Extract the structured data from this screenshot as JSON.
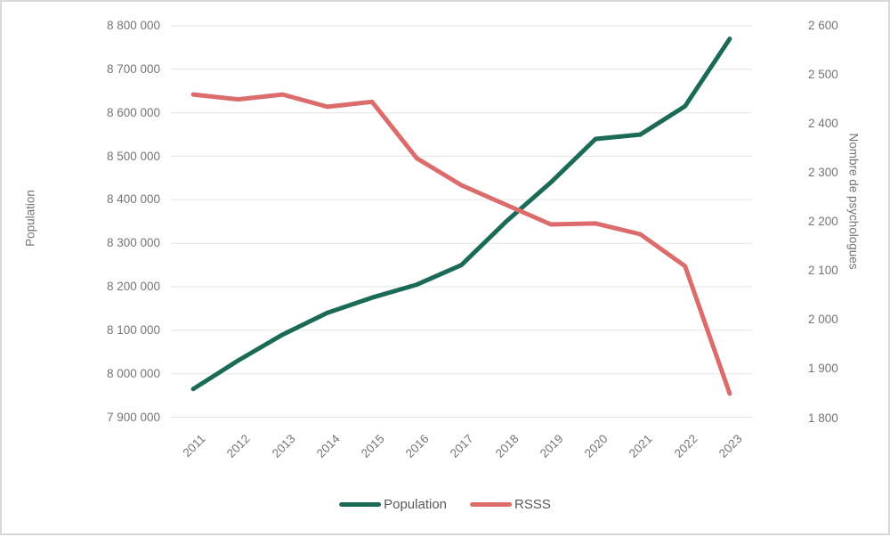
{
  "chart_data": {
    "type": "line",
    "categories": [
      "2011",
      "2012",
      "2013",
      "2014",
      "2015",
      "2016",
      "2017",
      "2018",
      "2019",
      "2020",
      "2021",
      "2022",
      "2023"
    ],
    "series": [
      {
        "name": "Population",
        "axis": "left",
        "color": "#1B6A58",
        "values": [
          7965000,
          8030000,
          8090000,
          8140000,
          8175000,
          8205000,
          8250000,
          8350000,
          8440000,
          8540000,
          8550000,
          8615000,
          8770000
        ]
      },
      {
        "name": "RSSS",
        "axis": "right",
        "color": "#DC6C6C",
        "values": [
          2460,
          2450,
          2460,
          2435,
          2445,
          2330,
          2275,
          2235,
          2195,
          2197,
          2175,
          2110,
          1850
        ]
      }
    ],
    "left_axis": {
      "label": "Population",
      "min": 7900000,
      "max": 8800000,
      "tick_step": 100000,
      "tick_labels": [
        "8 800 000",
        "8 700 000",
        "8 600 000",
        "8 500 000",
        "8 400 000",
        "8 300 000",
        "8 200 000",
        "8 100 000",
        "8 000 000",
        "7 900 000"
      ]
    },
    "right_axis": {
      "label": "Nombre de psychologues",
      "min": 1800,
      "max": 2600,
      "tick_step": 100,
      "tick_labels": [
        "2 600",
        "2 500",
        "2 400",
        "2 300",
        "2 200",
        "2 100",
        "2 000",
        "1 900",
        "1 800"
      ]
    },
    "legend": {
      "position": "bottom",
      "entries": [
        "Population",
        "RSSS"
      ]
    },
    "grid": "horizontal"
  },
  "colors": {
    "background": "#FFFFFF",
    "border": "#D9D9D9",
    "grid": "#E5E5E5",
    "tick_text": "#757575",
    "legend_text": "#595959"
  }
}
